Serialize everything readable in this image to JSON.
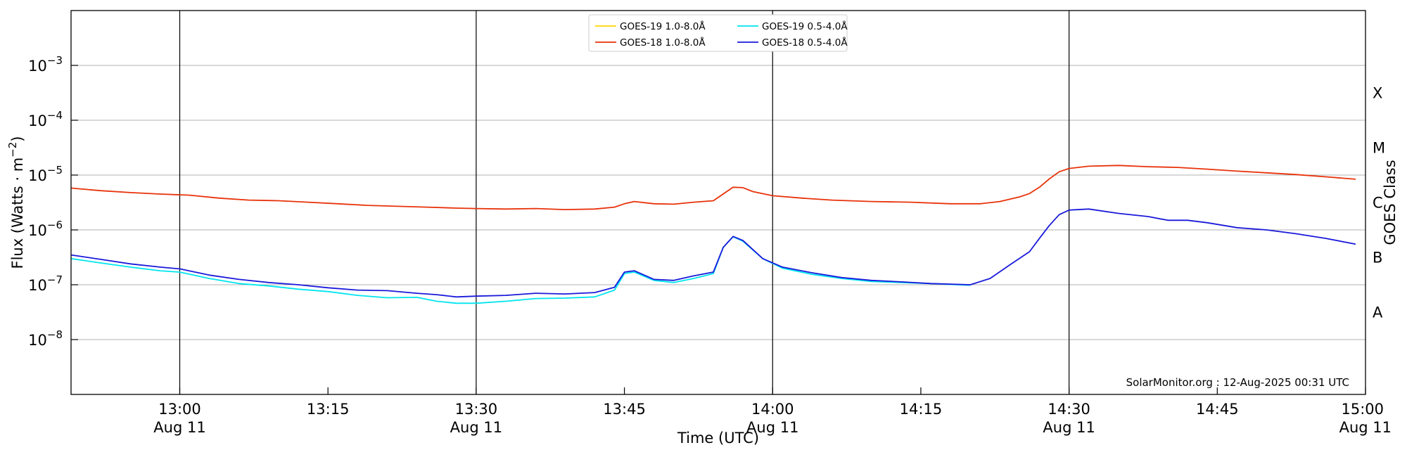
{
  "chart_data": {
    "type": "line",
    "title": "",
    "xlabel": "Time (UTC)",
    "ylabel": "Flux (Watts · m",
    "ylabel_exponent": "−2",
    "ylabel_close": ")",
    "y2label": "GOES Class",
    "yscale": "log",
    "ylim": [
      1e-09,
      0.01
    ],
    "xlim": [
      "2025-08-11 12:49",
      "2025-08-11 15:00"
    ],
    "grid": "horizontal at decades",
    "legend_placement": "top-center",
    "credit": "SolarMonitor.org : 12-Aug-2025 00:31 UTC",
    "y_ticks": [
      {
        "base": "10",
        "exp": "−3",
        "value": 0.001
      },
      {
        "base": "10",
        "exp": "−4",
        "value": 0.0001
      },
      {
        "base": "10",
        "exp": "−5",
        "value": 1e-05
      },
      {
        "base": "10",
        "exp": "−6",
        "value": 1e-06
      },
      {
        "base": "10",
        "exp": "−7",
        "value": 1e-07
      },
      {
        "base": "10",
        "exp": "−8",
        "value": 1e-08
      }
    ],
    "x_ticks": [
      {
        "time": "13:00",
        "date": "Aug 11",
        "line": true
      },
      {
        "time": "13:15",
        "date": "",
        "line": false
      },
      {
        "time": "13:30",
        "date": "Aug 11",
        "line": true
      },
      {
        "time": "13:45",
        "date": "",
        "line": false
      },
      {
        "time": "14:00",
        "date": "Aug 11",
        "line": true
      },
      {
        "time": "14:15",
        "date": "",
        "line": false
      },
      {
        "time": "14:30",
        "date": "Aug 11",
        "line": true
      },
      {
        "time": "14:45",
        "date": "",
        "line": false
      },
      {
        "time": "15:00",
        "date": "Aug 11",
        "line": false
      }
    ],
    "goes_classes": [
      {
        "label": "X",
        "value": 0.00032
      },
      {
        "label": "M",
        "value": 3.2e-05
      },
      {
        "label": "C",
        "value": 3.2e-06
      },
      {
        "label": "B",
        "value": 3.2e-07
      },
      {
        "label": "A",
        "value": 3.2e-08
      }
    ],
    "series": [
      {
        "name": "GOES-19 1.0-8.0Å",
        "color": "#ffd700",
        "points": []
      },
      {
        "name": "GOES-18 1.0-8.0Å",
        "color": "#e8320a",
        "points": [
          [
            "12:49",
            5.8e-06
          ],
          [
            "12:52",
            5.2e-06
          ],
          [
            "12:55",
            4.8e-06
          ],
          [
            "12:58",
            4.5e-06
          ],
          [
            "13:01",
            4.3e-06
          ],
          [
            "13:04",
            3.8e-06
          ],
          [
            "13:07",
            3.5e-06
          ],
          [
            "13:10",
            3.4e-06
          ],
          [
            "13:13",
            3.2e-06
          ],
          [
            "13:16",
            3e-06
          ],
          [
            "13:19",
            2.8e-06
          ],
          [
            "13:22",
            2.7e-06
          ],
          [
            "13:25",
            2.6e-06
          ],
          [
            "13:28",
            2.5e-06
          ],
          [
            "13:30",
            2.45e-06
          ],
          [
            "13:33",
            2.4e-06
          ],
          [
            "13:36",
            2.45e-06
          ],
          [
            "13:39",
            2.35e-06
          ],
          [
            "13:42",
            2.4e-06
          ],
          [
            "13:44",
            2.6e-06
          ],
          [
            "13:45",
            3e-06
          ],
          [
            "13:46",
            3.3e-06
          ],
          [
            "13:48",
            3e-06
          ],
          [
            "13:50",
            2.95e-06
          ],
          [
            "13:52",
            3.2e-06
          ],
          [
            "13:54",
            3.4e-06
          ],
          [
            "13:56",
            6e-06
          ],
          [
            "13:57",
            5.9e-06
          ],
          [
            "13:58",
            5e-06
          ],
          [
            "14:00",
            4.2e-06
          ],
          [
            "14:03",
            3.8e-06
          ],
          [
            "14:06",
            3.5e-06
          ],
          [
            "14:10",
            3.3e-06
          ],
          [
            "14:14",
            3.2e-06
          ],
          [
            "14:18",
            3e-06
          ],
          [
            "14:21",
            3e-06
          ],
          [
            "14:23",
            3.3e-06
          ],
          [
            "14:25",
            4e-06
          ],
          [
            "14:26",
            4.6e-06
          ],
          [
            "14:27",
            6e-06
          ],
          [
            "14:28",
            8.5e-06
          ],
          [
            "14:29",
            1.15e-05
          ],
          [
            "14:30",
            1.32e-05
          ],
          [
            "14:32",
            1.45e-05
          ],
          [
            "14:35",
            1.5e-05
          ],
          [
            "14:38",
            1.42e-05
          ],
          [
            "14:41",
            1.38e-05
          ],
          [
            "14:44",
            1.28e-05
          ],
          [
            "14:47",
            1.18e-05
          ],
          [
            "14:50",
            1.1e-05
          ],
          [
            "14:53",
            1.02e-05
          ],
          [
            "14:56",
            9.3e-06
          ],
          [
            "14:59",
            8.4e-06
          ]
        ]
      },
      {
        "name": "GOES-19 0.5-4.0Å",
        "color": "#00e5ee",
        "points": [
          [
            "12:49",
            3e-07
          ],
          [
            "12:52",
            2.5e-07
          ],
          [
            "12:55",
            2.1e-07
          ],
          [
            "12:58",
            1.8e-07
          ],
          [
            "13:00",
            1.7e-07
          ],
          [
            "13:03",
            1.3e-07
          ],
          [
            "13:06",
            1.05e-07
          ],
          [
            "13:09",
            9.5e-08
          ],
          [
            "13:12",
            8.3e-08
          ],
          [
            "13:15",
            7.5e-08
          ],
          [
            "13:18",
            6.4e-08
          ],
          [
            "13:21",
            5.8e-08
          ],
          [
            "13:24",
            5.9e-08
          ],
          [
            "13:26",
            5e-08
          ],
          [
            "13:28",
            4.6e-08
          ],
          [
            "13:30",
            4.6e-08
          ],
          [
            "13:33",
            5e-08
          ],
          [
            "13:36",
            5.6e-08
          ],
          [
            "13:39",
            5.7e-08
          ],
          [
            "13:42",
            6e-08
          ],
          [
            "13:44",
            8e-08
          ],
          [
            "13:45",
            1.6e-07
          ],
          [
            "13:46",
            1.7e-07
          ],
          [
            "13:48",
            1.2e-07
          ],
          [
            "13:50",
            1.1e-07
          ],
          [
            "13:52",
            1.3e-07
          ],
          [
            "13:54",
            1.6e-07
          ],
          [
            "13:55",
            4.8e-07
          ],
          [
            "13:56",
            7.5e-07
          ],
          [
            "13:57",
            6.2e-07
          ],
          [
            "13:59",
            3e-07
          ],
          [
            "14:01",
            2e-07
          ],
          [
            "14:04",
            1.55e-07
          ],
          [
            "14:07",
            1.3e-07
          ],
          [
            "14:10",
            1.15e-07
          ],
          [
            "14:13",
            1.1e-07
          ],
          [
            "14:16",
            1.05e-07
          ],
          [
            "14:20",
            9.8e-08
          ]
        ]
      },
      {
        "name": "GOES-18 0.5-4.0Å",
        "color": "#1a1adb",
        "points": [
          [
            "12:49",
            3.5e-07
          ],
          [
            "12:52",
            2.9e-07
          ],
          [
            "12:55",
            2.4e-07
          ],
          [
            "12:58",
            2.1e-07
          ],
          [
            "13:00",
            1.95e-07
          ],
          [
            "13:03",
            1.5e-07
          ],
          [
            "13:06",
            1.25e-07
          ],
          [
            "13:09",
            1.1e-07
          ],
          [
            "13:12",
            1e-07
          ],
          [
            "13:15",
            8.8e-08
          ],
          [
            "13:18",
            8e-08
          ],
          [
            "13:21",
            7.8e-08
          ],
          [
            "13:24",
            7e-08
          ],
          [
            "13:26",
            6.6e-08
          ],
          [
            "13:28",
            6e-08
          ],
          [
            "13:30",
            6.2e-08
          ],
          [
            "13:33",
            6.4e-08
          ],
          [
            "13:36",
            7e-08
          ],
          [
            "13:39",
            6.8e-08
          ],
          [
            "13:42",
            7.2e-08
          ],
          [
            "13:44",
            9e-08
          ],
          [
            "13:45",
            1.7e-07
          ],
          [
            "13:46",
            1.8e-07
          ],
          [
            "13:48",
            1.25e-07
          ],
          [
            "13:50",
            1.2e-07
          ],
          [
            "13:52",
            1.45e-07
          ],
          [
            "13:54",
            1.7e-07
          ],
          [
            "13:55",
            4.8e-07
          ],
          [
            "13:56",
            7.6e-07
          ],
          [
            "13:57",
            6.4e-07
          ],
          [
            "13:59",
            3e-07
          ],
          [
            "14:01",
            2.1e-07
          ],
          [
            "14:04",
            1.65e-07
          ],
          [
            "14:07",
            1.35e-07
          ],
          [
            "14:10",
            1.2e-07
          ],
          [
            "14:13",
            1.13e-07
          ],
          [
            "14:16",
            1.05e-07
          ],
          [
            "14:20",
            1e-07
          ],
          [
            "14:22",
            1.3e-07
          ],
          [
            "14:24",
            2.3e-07
          ],
          [
            "14:26",
            4e-07
          ],
          [
            "14:27",
            7e-07
          ],
          [
            "14:28",
            1.2e-06
          ],
          [
            "14:29",
            1.9e-06
          ],
          [
            "14:30",
            2.3e-06
          ],
          [
            "14:32",
            2.4e-06
          ],
          [
            "14:35",
            2e-06
          ],
          [
            "14:38",
            1.75e-06
          ],
          [
            "14:40",
            1.5e-06
          ],
          [
            "14:42",
            1.5e-06
          ],
          [
            "14:44",
            1.35e-06
          ],
          [
            "14:47",
            1.1e-06
          ],
          [
            "14:50",
            1e-06
          ],
          [
            "14:53",
            8.5e-07
          ],
          [
            "14:56",
            7e-07
          ],
          [
            "14:59",
            5.5e-07
          ]
        ]
      }
    ]
  }
}
